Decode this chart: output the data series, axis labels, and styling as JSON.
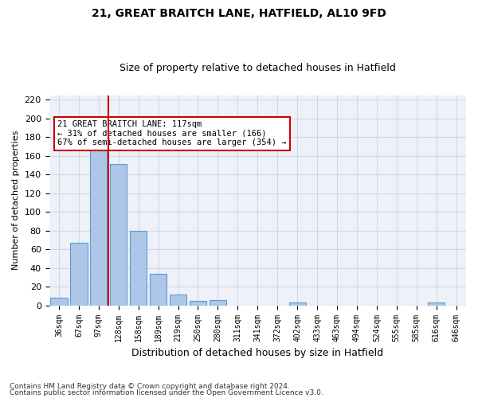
{
  "title1": "21, GREAT BRAITCH LANE, HATFIELD, AL10 9FD",
  "title2": "Size of property relative to detached houses in Hatfield",
  "xlabel": "Distribution of detached houses by size in Hatfield",
  "ylabel": "Number of detached properties",
  "categories": [
    "36sqm",
    "67sqm",
    "97sqm",
    "128sqm",
    "158sqm",
    "189sqm",
    "219sqm",
    "250sqm",
    "280sqm",
    "311sqm",
    "341sqm",
    "372sqm",
    "402sqm",
    "433sqm",
    "463sqm",
    "494sqm",
    "524sqm",
    "555sqm",
    "585sqm",
    "616sqm",
    "646sqm"
  ],
  "values": [
    8,
    67,
    170,
    151,
    80,
    34,
    12,
    5,
    6,
    0,
    0,
    0,
    3,
    0,
    0,
    0,
    0,
    0,
    0,
    3,
    0
  ],
  "bar_color": "#aec6e8",
  "bar_edge_color": "#5b9bd5",
  "grid_color": "#d0d8e8",
  "background_color": "#eef2f8",
  "annotation_text": "21 GREAT BRAITCH LANE: 117sqm\n← 31% of detached houses are smaller (166)\n67% of semi-detached houses are larger (354) →",
  "annotation_box_color": "#ffffff",
  "annotation_box_edge": "#cc0000",
  "property_line_color": "#cc0000",
  "ylim": [
    0,
    225
  ],
  "yticks": [
    0,
    20,
    40,
    60,
    80,
    100,
    120,
    140,
    160,
    180,
    200,
    220
  ],
  "footnote1": "Contains HM Land Registry data © Crown copyright and database right 2024.",
  "footnote2": "Contains public sector information licensed under the Open Government Licence v3.0."
}
